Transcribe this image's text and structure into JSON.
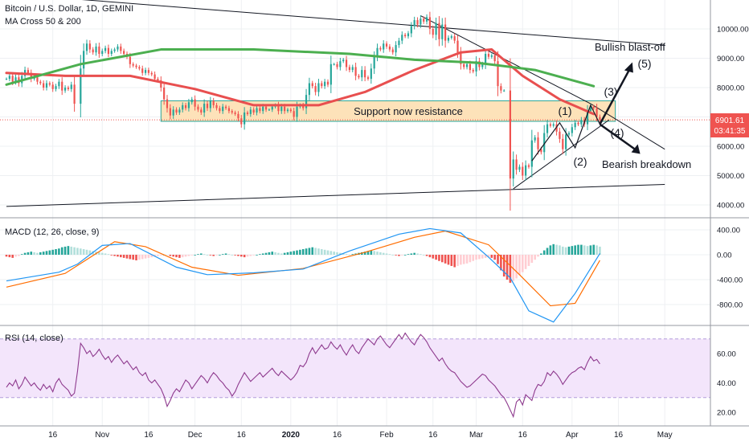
{
  "header": {
    "symbol_title": "Bitcoin / U.S. Dollar, 1D, GEMINI",
    "indicator_title": "MA Cross 50 & 200"
  },
  "panes": {
    "macd_title": "MACD (12, 26, close, 9)",
    "rsi_title": "RSI (14, close)"
  },
  "price_tag": {
    "price": "6901.61",
    "countdown": "03:41:35"
  },
  "colors": {
    "candle_up": "#26a69a",
    "candle_down": "#ef5350",
    "ma50": "#e84f4f",
    "ma200": "#4caf50",
    "macd_line": "#2196f3",
    "signal_line": "#ff6d00",
    "hist_up_strong": "#26a69a",
    "hist_up_weak": "#b2dfdb",
    "hist_down_strong": "#ef5350",
    "hist_down_weak": "#ffcdd2",
    "rsi_line": "#8e3a8e",
    "rsi_band": "#f3e5fb",
    "zone_fill": "#fde2b9",
    "zone_border": "#26a69a",
    "price_tag_bg": "#ef5350"
  },
  "annotations": {
    "zone_label": "Support now resistance",
    "bullish_label": "Bullish blast-off",
    "bearish_label": "Bearish breakdown",
    "wave_labels": [
      "(1)",
      "(2)",
      "(3)",
      "(4)",
      "(5)"
    ]
  },
  "chart_data": {
    "type": "candlestick",
    "y_axis": {
      "scale": "linear",
      "range": [
        3500,
        11000
      ],
      "ticks": [
        "4000.00",
        "5000.00",
        "6000.00",
        "7000.00",
        "8000.00",
        "9000.00",
        "10000.00"
      ]
    },
    "x_axis": {
      "ticks": [
        "16",
        "Nov",
        "16",
        "Dec",
        "16",
        "2020",
        "16",
        "Feb",
        "16",
        "Mar",
        "16",
        "Apr",
        "16",
        "May"
      ]
    },
    "macd_axis": {
      "range": [
        -1150,
        550
      ],
      "ticks": [
        "400.00",
        "0.00",
        "-400.00",
        "-800.00"
      ]
    },
    "rsi_axis": {
      "range": [
        12,
        78
      ],
      "ticks": [
        "60.00",
        "40.00",
        "20.00"
      ],
      "bands": [
        30,
        70
      ]
    },
    "current_price": 6901.61,
    "price_segments": [
      {
        "from": "2019-10-01",
        "to": "2019-10-24",
        "values": [
          8300,
          8400,
          8200,
          8350,
          8150,
          8400,
          8600,
          8500,
          8300,
          8350,
          8200,
          8150,
          8000,
          8150,
          8100,
          7950,
          8050,
          8200,
          7900,
          8000,
          7950,
          8100,
          7450
        ]
      },
      {
        "from": "2019-10-25",
        "to": "2019-11-20",
        "values": [
          8650,
          9250,
          9500,
          9300,
          9200,
          9400,
          9150,
          9250,
          9350,
          9150,
          9250,
          9300,
          9400,
          9250,
          9150,
          9050,
          8800,
          8750,
          8700,
          8650,
          8500,
          8600,
          8500,
          8450,
          8300,
          8250,
          8000
        ]
      },
      {
        "from": "2019-11-21",
        "to": "2019-12-31",
        "values": [
          7600,
          7300,
          7050,
          7250,
          7150,
          7250,
          7400,
          7300,
          7500,
          7600,
          7350,
          7250,
          7150,
          7450,
          7300,
          7550,
          7400,
          7300,
          7200,
          7350,
          7300,
          7200,
          7150,
          7100,
          6950,
          6750,
          7150,
          7100,
          7250,
          7150,
          7300,
          7200,
          7350,
          7250,
          7250,
          7350,
          7400,
          7200,
          7350,
          7200,
          7250
        ]
      },
      {
        "from": "2020-01-01",
        "to": "2020-02-15",
        "values": [
          7200,
          7000,
          7350,
          7400,
          7300,
          7750,
          8150,
          8050,
          7850,
          8150,
          8050,
          8200,
          8100,
          8800,
          8800,
          8700,
          8900,
          8950,
          8700,
          8600,
          8700,
          8400,
          8350,
          8600,
          8350,
          8300,
          8650,
          9050,
          9350,
          9300,
          9500,
          9400,
          9300,
          9200,
          9450,
          9600,
          9800,
          9750,
          9850,
          10100,
          10300,
          10150,
          10350,
          10250,
          10400,
          10000
        ]
      },
      {
        "from": "2020-02-16",
        "to": "2020-03-11",
        "values": [
          9800,
          10200,
          9650,
          10150,
          9600,
          9700,
          9750,
          9600,
          9200,
          8800,
          8700,
          8800,
          8600,
          8550,
          8900,
          8700,
          8800,
          9150,
          9050,
          9100,
          8900,
          8050,
          7900,
          7900
        ]
      },
      {
        "from": "2020-03-12",
        "to": "2020-04-10",
        "values": [
          4900,
          5550,
          5200,
          5300,
          5000,
          5350,
          5300,
          6200,
          6300,
          5900,
          5800,
          6450,
          6750,
          6700,
          6750,
          6500,
          6250,
          5900,
          6400,
          6450,
          6650,
          6800,
          6750,
          6900,
          6750,
          7200,
          7350,
          7300,
          7000,
          6900
        ]
      }
    ],
    "moving_averages": [
      {
        "name": "MA 50",
        "points": [
          [
            "2019-10-01",
            8500
          ],
          [
            "2019-10-20",
            8400
          ],
          [
            "2019-11-10",
            8400
          ],
          [
            "2019-12-01",
            7950
          ],
          [
            "2019-12-20",
            7400
          ],
          [
            "2020-01-10",
            7400
          ],
          [
            "2020-01-25",
            7850
          ],
          [
            "2020-02-10",
            8600
          ],
          [
            "2020-02-25",
            9200
          ],
          [
            "2020-03-06",
            9300
          ],
          [
            "2020-03-16",
            8400
          ],
          [
            "2020-03-28",
            7600
          ],
          [
            "2020-04-08",
            7100
          ]
        ]
      },
      {
        "name": "MA 200",
        "points": [
          [
            "2019-10-01",
            8100
          ],
          [
            "2019-10-25",
            8800
          ],
          [
            "2019-11-20",
            9300
          ],
          [
            "2019-12-20",
            9300
          ],
          [
            "2020-01-20",
            9150
          ],
          [
            "2020-02-10",
            8950
          ],
          [
            "2020-03-01",
            8850
          ],
          [
            "2020-03-20",
            8600
          ],
          [
            "2020-04-08",
            8050
          ]
        ]
      }
    ],
    "support_zone": {
      "from": "2019-11-20",
      "to": "2020-04-15",
      "low": 6850,
      "high": 7550
    },
    "trendlines": [
      {
        "name": "long-term-resistance",
        "points": [
          [
            "2019-10-01",
            11200
          ],
          [
            "2020-05-01",
            9450
          ]
        ]
      },
      {
        "name": "long-term-support",
        "points": [
          [
            "2019-10-01",
            3950
          ],
          [
            "2020-05-01",
            4700
          ]
        ]
      },
      {
        "name": "wedge-resistance",
        "points": [
          [
            "2020-02-12",
            10450
          ],
          [
            "2020-04-07",
            7450
          ],
          [
            "2020-05-01",
            5900
          ]
        ]
      },
      {
        "name": "wedge-support",
        "points": [
          [
            "2020-03-13",
            4550
          ],
          [
            "2020-04-13",
            6900
          ]
        ]
      }
    ],
    "macd_histogram": [
      {
        "from": "2019-10-01",
        "to": "2019-11-22",
        "values": [
          -30,
          -40,
          -50,
          -30,
          -20,
          10,
          30,
          40,
          50,
          40,
          30,
          40,
          50,
          60,
          70,
          80,
          90,
          100,
          120,
          130,
          140,
          130,
          120,
          110,
          100,
          90,
          80,
          70,
          60,
          50,
          40,
          30,
          20,
          10,
          -10,
          -20,
          -30,
          -40,
          -50,
          -60,
          -70,
          -80,
          -90,
          -80,
          -70,
          -60,
          -50,
          -40,
          -30,
          -20,
          -10,
          0
        ]
      },
      {
        "from": "2019-11-23",
        "to": "2019-12-31",
        "values": [
          -20,
          -30,
          -40,
          -50,
          -40,
          -30,
          -20,
          -10,
          0,
          10,
          20,
          10,
          0,
          -10,
          -20,
          -10,
          0,
          10,
          20,
          10,
          0,
          -10,
          -20,
          -30,
          -40,
          -30,
          -20,
          -10,
          0,
          10,
          20,
          30,
          40,
          50,
          40,
          30,
          20,
          30,
          40
        ]
      },
      {
        "from": "2020-01-01",
        "to": "2020-03-01",
        "values": [
          50,
          60,
          70,
          80,
          90,
          100,
          110,
          120,
          110,
          100,
          90,
          80,
          70,
          60,
          50,
          40,
          30,
          20,
          10,
          0,
          10,
          20,
          30,
          40,
          50,
          60,
          70,
          60,
          50,
          40,
          30,
          20,
          10,
          0,
          -10,
          -20,
          -10,
          0,
          10,
          20,
          30,
          20,
          10,
          0,
          -20,
          -40,
          -60,
          -80,
          -100,
          -120,
          -140,
          -160,
          -180,
          -200,
          -180,
          -160,
          -150,
          -140,
          -120,
          -100,
          -80
        ]
      },
      {
        "from": "2020-03-02",
        "to": "2020-04-10",
        "values": [
          -70,
          -60,
          -50,
          -40,
          -50,
          -80,
          -150,
          -250,
          -350,
          -400,
          -450,
          -420,
          -380,
          -330,
          -280,
          -230,
          -180,
          -130,
          -80,
          -30,
          20,
          70,
          110,
          150,
          170,
          160,
          150,
          130,
          120,
          130,
          140,
          150,
          160,
          160,
          150,
          140,
          150,
          160,
          150,
          130
        ]
      }
    ],
    "macd_line": [
      [
        "2019-10-01",
        -420
      ],
      [
        "2019-10-18",
        -280
      ],
      [
        "2019-10-24",
        -150
      ],
      [
        "2019-11-01",
        150
      ],
      [
        "2019-11-10",
        180
      ],
      [
        "2019-11-25",
        -200
      ],
      [
        "2019-12-05",
        -320
      ],
      [
        "2019-12-20",
        -290
      ],
      [
        "2020-01-05",
        -230
      ],
      [
        "2020-01-20",
        60
      ],
      [
        "2020-02-05",
        330
      ],
      [
        "2020-02-15",
        420
      ],
      [
        "2020-02-25",
        350
      ],
      [
        "2020-03-05",
        -40
      ],
      [
        "2020-03-12",
        -370
      ],
      [
        "2020-03-18",
        -900
      ],
      [
        "2020-03-26",
        -1080
      ],
      [
        "2020-04-02",
        -620
      ],
      [
        "2020-04-10",
        20
      ]
    ],
    "signal_line": [
      [
        "2019-10-01",
        -520
      ],
      [
        "2019-10-20",
        -300
      ],
      [
        "2019-11-05",
        210
      ],
      [
        "2019-11-15",
        130
      ],
      [
        "2019-11-30",
        -200
      ],
      [
        "2019-12-15",
        -330
      ],
      [
        "2020-01-05",
        -220
      ],
      [
        "2020-01-25",
        40
      ],
      [
        "2020-02-10",
        280
      ],
      [
        "2020-02-20",
        380
      ],
      [
        "2020-03-05",
        160
      ],
      [
        "2020-03-15",
        -320
      ],
      [
        "2020-03-25",
        -820
      ],
      [
        "2020-04-02",
        -780
      ],
      [
        "2020-04-10",
        -90
      ]
    ],
    "rsi": [
      {
        "from": "2019-10-01",
        "to": "2019-11-20",
        "values": [
          37,
          40,
          38,
          42,
          36,
          39,
          44,
          41,
          38,
          40,
          37,
          35,
          39,
          36,
          38,
          34,
          40,
          43,
          39,
          37,
          35,
          31,
          33,
          48,
          67,
          64,
          60,
          62,
          58,
          60,
          63,
          59,
          56,
          58,
          54,
          57,
          59,
          56,
          53,
          55,
          52,
          49,
          51,
          47,
          45,
          47,
          42,
          40,
          42,
          39,
          36
        ]
      },
      {
        "from": "2019-11-21",
        "to": "2019-12-31",
        "values": [
          31,
          24,
          28,
          33,
          36,
          34,
          38,
          42,
          40,
          36,
          39,
          42,
          45,
          43,
          40,
          44,
          47,
          45,
          42,
          40,
          37,
          35,
          31,
          34,
          39,
          43,
          47,
          44,
          41,
          43,
          45,
          47,
          44,
          46,
          48,
          50,
          47,
          45,
          48,
          46,
          44
        ]
      },
      {
        "from": "2020-01-01",
        "to": "2020-02-15",
        "values": [
          42,
          44,
          47,
          52,
          51,
          54,
          60,
          64,
          60,
          63,
          66,
          63,
          64,
          68,
          65,
          63,
          66,
          62,
          59,
          63,
          66,
          62,
          60,
          64,
          67,
          70,
          68,
          66,
          70,
          72,
          69,
          66,
          64,
          67,
          70,
          73,
          70,
          74,
          71,
          68,
          66,
          70,
          73,
          71,
          68,
          64
        ]
      },
      {
        "from": "2020-02-16",
        "to": "2020-03-12",
        "values": [
          61,
          58,
          55,
          57,
          53,
          50,
          48,
          47,
          44,
          41,
          39,
          37,
          38,
          40,
          42,
          44,
          46,
          45,
          42,
          40,
          38,
          35,
          32,
          30,
          26
        ]
      },
      {
        "from": "2020-03-13",
        "to": "2020-04-10",
        "values": [
          17,
          27,
          29,
          25,
          32,
          30,
          28,
          35,
          39,
          38,
          41,
          47,
          45,
          48,
          46,
          43,
          39,
          42,
          45,
          47,
          48,
          50,
          51,
          49,
          54,
          58,
          55,
          56,
          53
        ]
      }
    ]
  }
}
